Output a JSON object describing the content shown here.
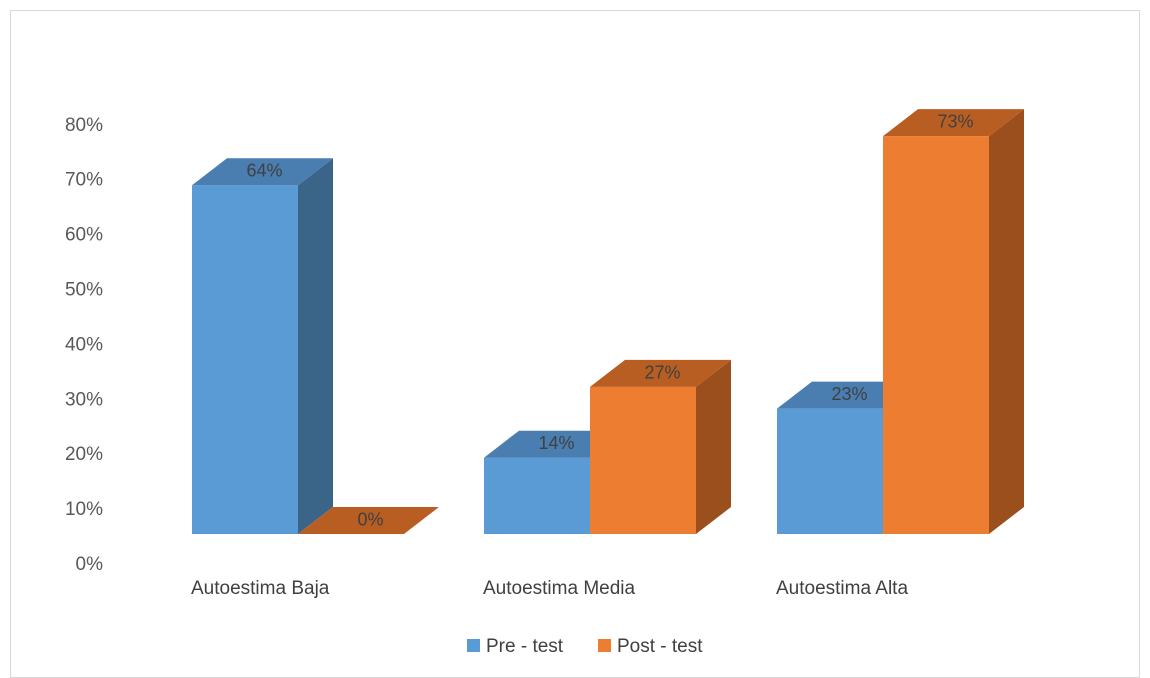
{
  "chart_data": {
    "type": "bar",
    "categories": [
      "Autoestima Baja",
      "Autoestima Media",
      "Autoestima Alta"
    ],
    "series": [
      {
        "name": "Pre - test",
        "values": [
          64,
          14,
          23
        ],
        "labels": [
          "64%",
          "14%",
          "23%"
        ],
        "color": "#5b9bd5",
        "side_color": "#3a6488",
        "top_color": "#4a7db0"
      },
      {
        "name": "Post - test",
        "values": [
          0,
          27,
          73
        ],
        "labels": [
          "0%",
          "27%",
          "73%"
        ],
        "color": "#ed7d31",
        "side_color": "#9a4f1c",
        "top_color": "#b85e23"
      }
    ],
    "y_ticks": [
      "0%",
      "10%",
      "20%",
      "30%",
      "40%",
      "50%",
      "60%",
      "70%",
      "80%"
    ],
    "ylim": [
      0,
      80
    ],
    "grid": false,
    "legend_position": "bottom",
    "title": "",
    "xlabel": "",
    "ylabel": ""
  }
}
